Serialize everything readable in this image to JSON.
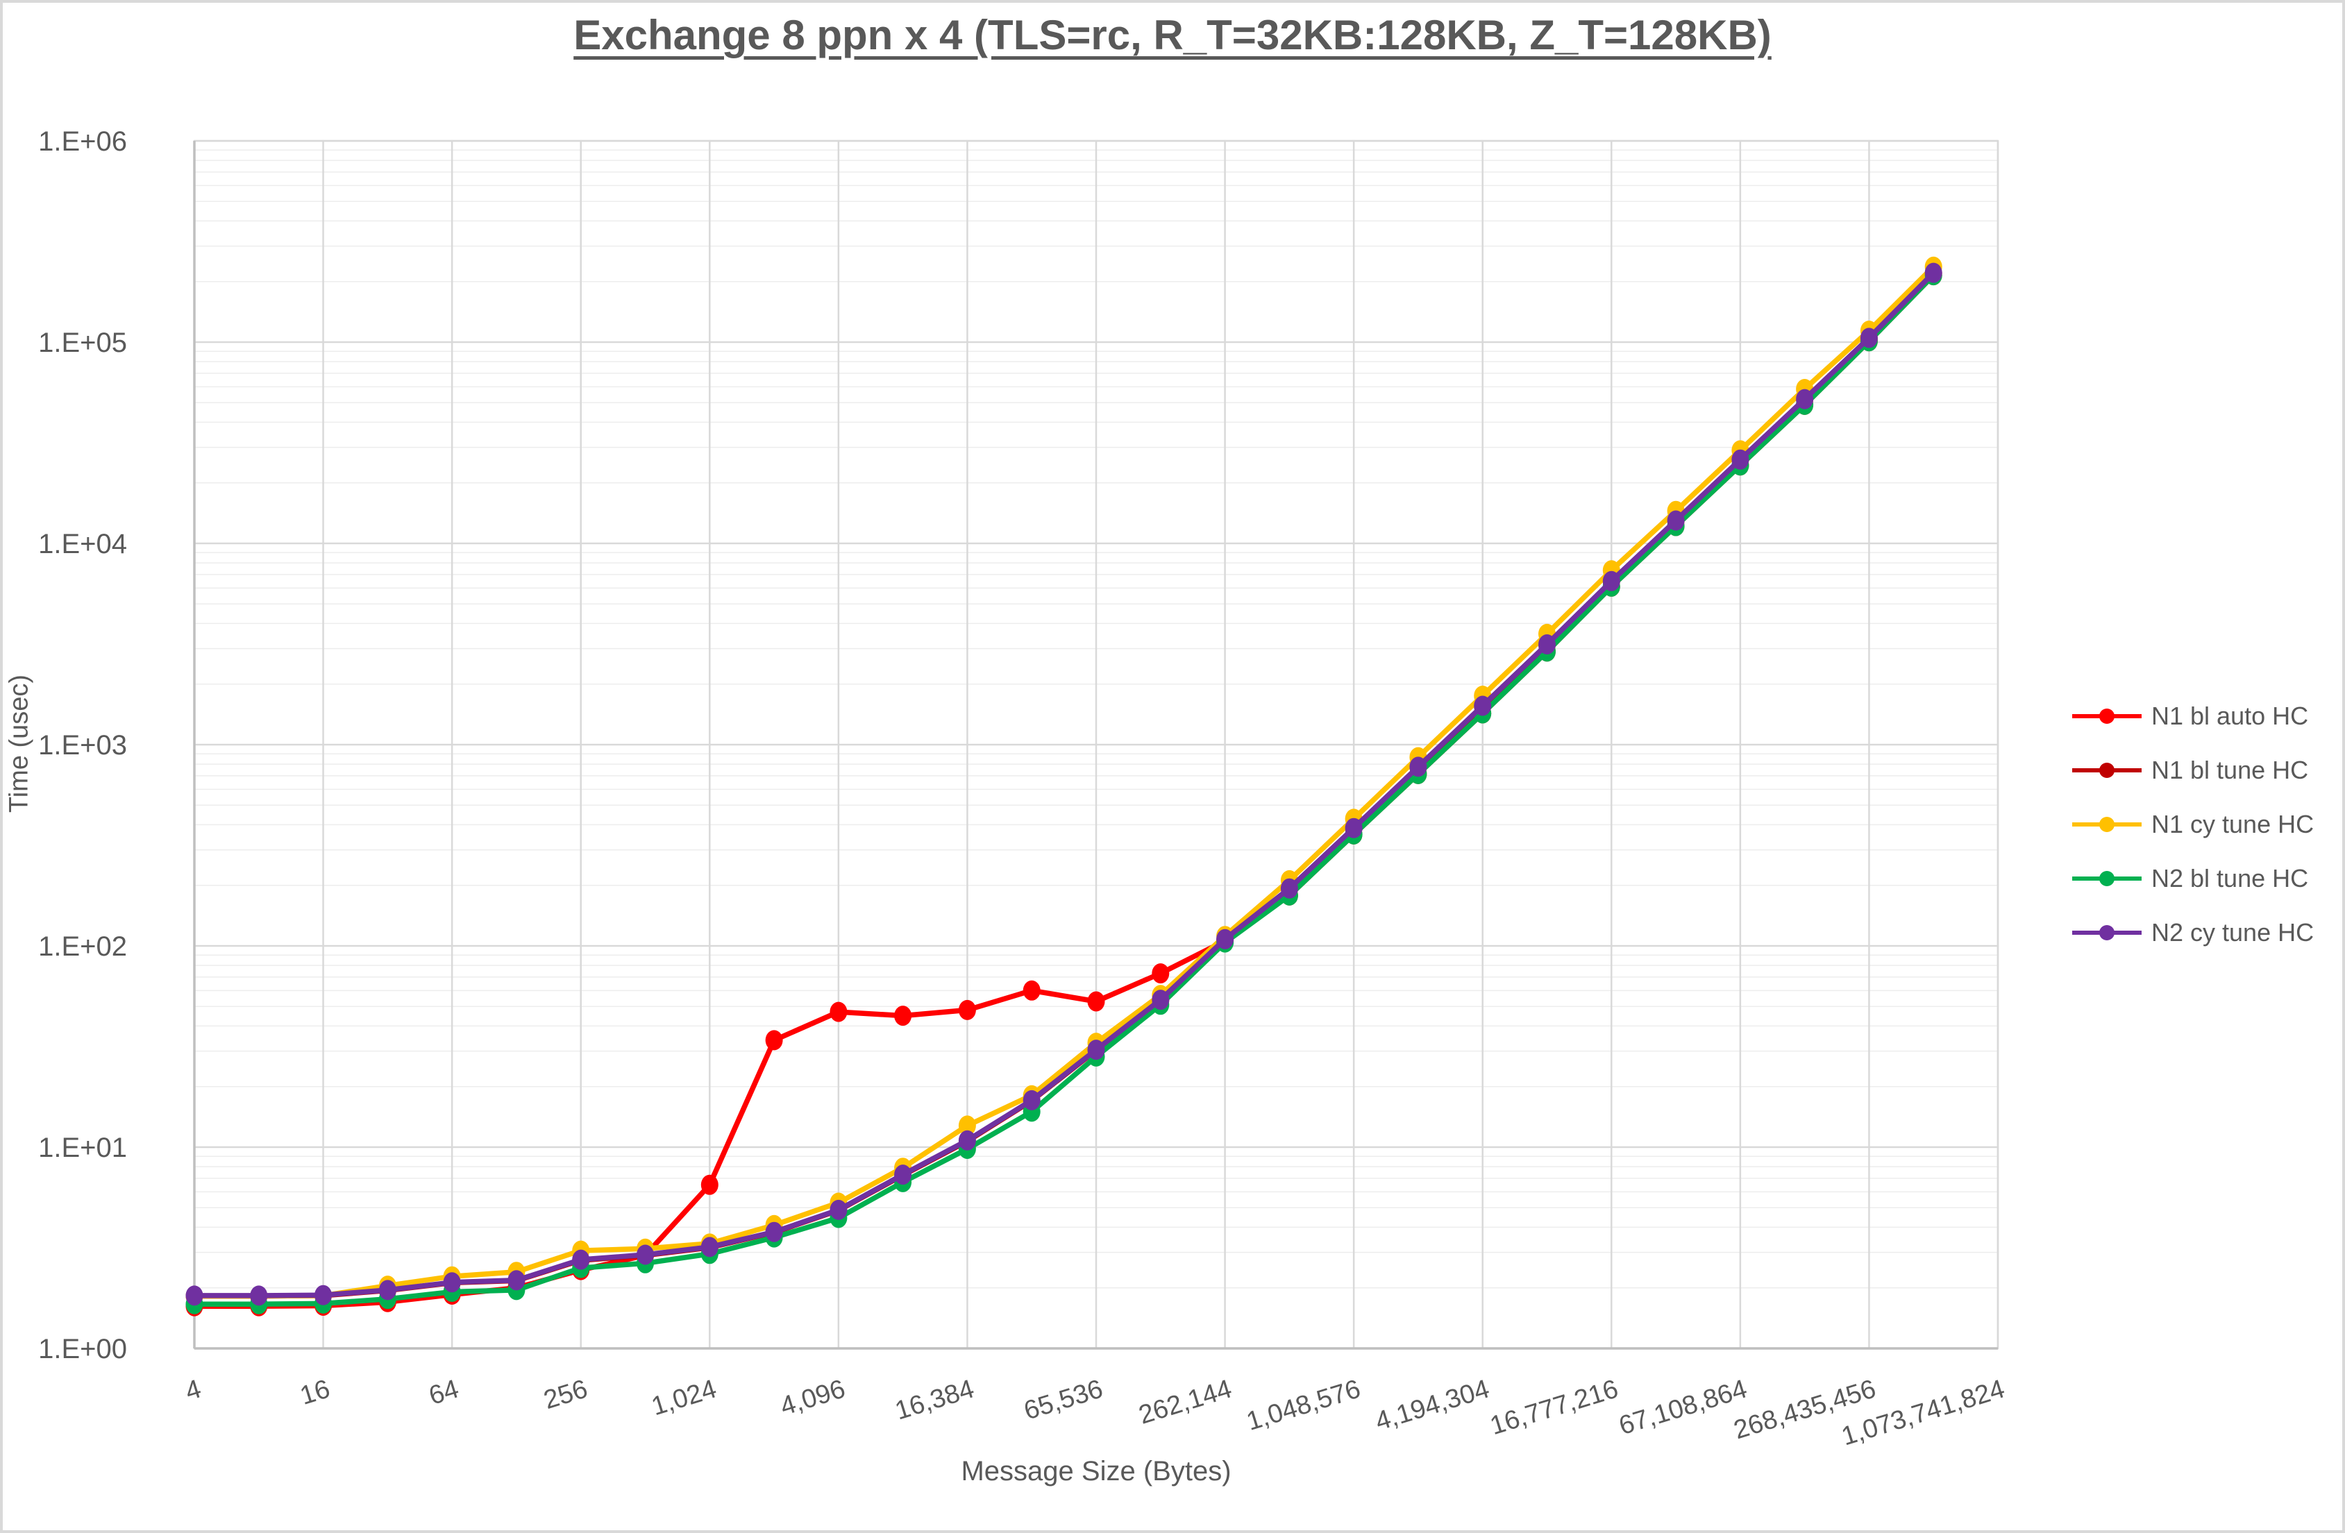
{
  "page": {
    "background": "#FFFFFF",
    "border_color": "#D9D9D9"
  },
  "chart_data": {
    "type": "line",
    "title": "Exchange 8 ppn x 4 (TLS=rc, R_T=32KB:128KB, Z_T=128KB)",
    "xlabel": "Message Size (Bytes)",
    "ylabel": "Time (usec)",
    "x_scale": "log2",
    "y_scale": "log10",
    "xlim": [
      4,
      1073741824
    ],
    "ylim": [
      1,
      1000000
    ],
    "grid": {
      "major_color": "#D9D9D9",
      "minor_color": "#EDEDED",
      "axis_color": "#BFBFBF",
      "text_color": "#595959"
    },
    "legend_position": "right",
    "y_tick_labels": [
      "1.E+00",
      "1.E+01",
      "1.E+02",
      "1.E+03",
      "1.E+04",
      "1.E+05",
      "1.E+06"
    ],
    "y_tick_values": [
      1,
      10,
      100,
      1000,
      10000,
      100000,
      1000000
    ],
    "x_tick_labels": [
      "4",
      "16",
      "64",
      "256",
      "1,024",
      "4,096",
      "16,384",
      "65,536",
      "262,144",
      "1,048,576",
      "4,194,304",
      "16,777,216",
      "67,108,864",
      "268,435,456",
      "1,073,741,824"
    ],
    "x_tick_values": [
      4,
      16,
      64,
      256,
      1024,
      4096,
      16384,
      65536,
      262144,
      1048576,
      4194304,
      16777216,
      67108864,
      268435456,
      1073741824
    ],
    "x": [
      4,
      8,
      16,
      32,
      64,
      128,
      256,
      512,
      1024,
      2048,
      4096,
      8192,
      16384,
      32768,
      65536,
      131072,
      262144,
      524288,
      1048576,
      2097152,
      4194304,
      8388608,
      16777216,
      33554432,
      67108864,
      134217728,
      268435456,
      536870912
    ],
    "series": [
      {
        "name": "N1 bl auto HC",
        "color": "#FF0000",
        "values": [
          1.62,
          1.62,
          1.63,
          1.7,
          1.85,
          2.0,
          2.45,
          2.9,
          6.5,
          34,
          47,
          45,
          48,
          60,
          53,
          73,
          106,
          178,
          358,
          714,
          1430,
          2900,
          6100,
          12200,
          24400,
          48800,
          101000,
          215000
        ]
      },
      {
        "name": "N1 bl tune HC",
        "color": "#C00000",
        "values": [
          1.82,
          1.82,
          1.83,
          1.94,
          2.12,
          2.17,
          2.74,
          2.9,
          3.17,
          3.77,
          4.85,
          7.25,
          10.7,
          17.0,
          30.3,
          53.6,
          107,
          192,
          383,
          772,
          1550,
          3130,
          6470,
          12950,
          25950,
          51800,
          104500,
          220000
        ]
      },
      {
        "name": "N1 cy tune HC",
        "color": "#FFC000",
        "values": [
          1.82,
          1.82,
          1.83,
          2.05,
          2.28,
          2.4,
          3.06,
          3.13,
          3.32,
          4.1,
          5.3,
          7.9,
          12.8,
          18.1,
          33,
          57,
          112,
          212,
          428,
          866,
          1750,
          3550,
          7350,
          14500,
          29000,
          58500,
          114000,
          237000
        ]
      },
      {
        "name": "N2 bl tune HC",
        "color": "#00B050",
        "values": [
          1.66,
          1.66,
          1.67,
          1.76,
          1.91,
          1.95,
          2.51,
          2.65,
          2.95,
          3.56,
          4.45,
          6.7,
          9.8,
          15.0,
          28.2,
          51,
          104,
          178,
          358,
          714,
          1430,
          2900,
          6100,
          12200,
          24400,
          48800,
          101000,
          215000
        ]
      },
      {
        "name": "N2 cy tune HC",
        "color": "#7030A0",
        "values": [
          1.83,
          1.83,
          1.84,
          1.95,
          2.13,
          2.18,
          2.76,
          2.92,
          3.19,
          3.79,
          4.88,
          7.3,
          10.8,
          17.1,
          30.5,
          54,
          108,
          193,
          385,
          776,
          1560,
          3150,
          6500,
          13000,
          26100,
          52100,
          105000,
          221000
        ]
      }
    ]
  }
}
